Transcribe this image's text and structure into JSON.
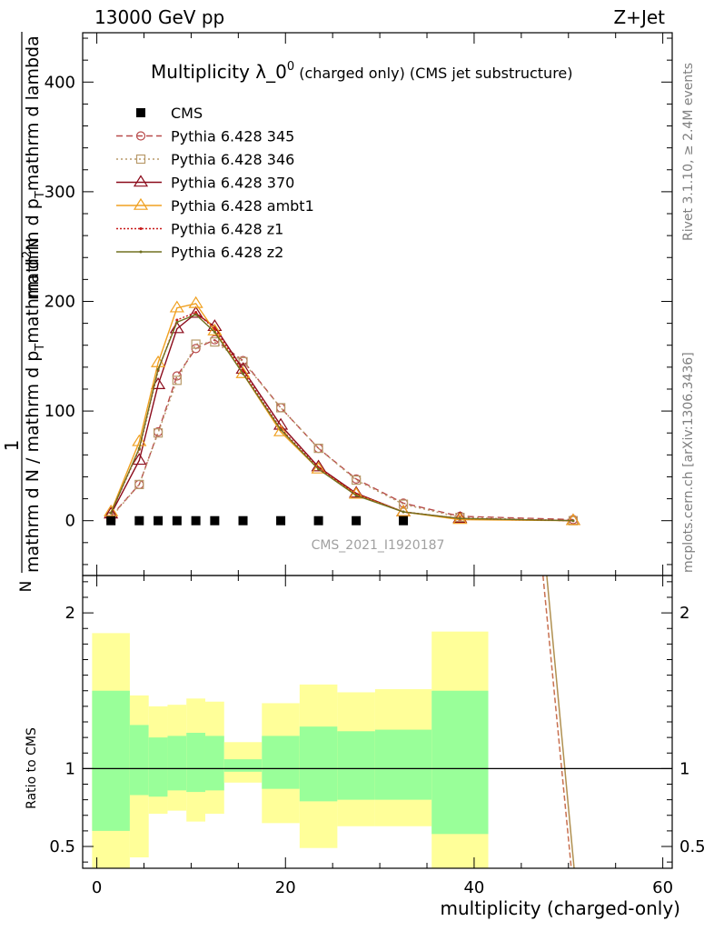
{
  "header": {
    "left": "13000 GeV pp",
    "right": "Z+Jet"
  },
  "side_labels": {
    "rivet": "Rivet 3.1.10, ≥ 2.4M events",
    "mcplots": "mcplots.cern.ch [arXiv:1306.3436]"
  },
  "watermark": "CMS_2021_I1920187",
  "chart_data": {
    "type": "line",
    "title_main": "Multiplicity λ_0",
    "title_sup": "0",
    "title_small": " (charged only) (CMS jet substructure)",
    "xlabel": "multiplicity (charged-only)",
    "ylabel_lines": [
      "1",
      "mathrm d N / mathrm d p",
      "T",
      "mathrm d",
      "2",
      "N",
      "mathrm d p",
      "T",
      "mathrm d lambda"
    ],
    "ratio_ylabel": "Ratio to CMS",
    "xlim": [
      -1.5,
      61
    ],
    "ylim": [
      -50,
      445
    ],
    "ratio_ylim": [
      0.36,
      2.24
    ],
    "xticks": [
      0,
      20,
      40,
      60
    ],
    "yticks": [
      0,
      100,
      200,
      300,
      400
    ],
    "ratio_yticks": [
      0.5,
      1,
      2
    ],
    "x": [
      1.5,
      4.5,
      6.5,
      8.5,
      10.5,
      12.5,
      15.5,
      19.5,
      23.5,
      27.5,
      32.5,
      38.5,
      50.5
    ],
    "cms_x": [
      1.5,
      4.5,
      6.5,
      8.5,
      10.5,
      12.5,
      15.5,
      19.5,
      23.5,
      27.5,
      32.5
    ],
    "cms_values": [
      0,
      0,
      0,
      0,
      0,
      0,
      0,
      0,
      0,
      0,
      0
    ],
    "series": [
      {
        "name": "Pythia 6.428 345",
        "color": "#b84a4a",
        "dash": "7,4",
        "marker": "circle",
        "values": [
          4,
          33,
          81,
          132,
          157,
          165,
          146,
          103,
          66,
          38,
          16,
          4,
          1
        ]
      },
      {
        "name": "Pythia 6.428 346",
        "color": "#b89a6a",
        "dash": "2,3",
        "marker": "square",
        "values": [
          3,
          33,
          80,
          128,
          161,
          163,
          145,
          103,
          66,
          37,
          15,
          3,
          0
        ]
      },
      {
        "name": "Pythia 6.428 370",
        "color": "#8b0a1a",
        "dash": "",
        "marker": "triangle",
        "values": [
          6,
          55,
          124,
          175,
          189,
          177,
          138,
          87,
          49,
          25,
          8,
          2,
          0
        ]
      },
      {
        "name": "Pythia 6.428 ambt1",
        "color": "#f0a020",
        "dash": "",
        "marker": "triangle",
        "values": [
          8,
          72,
          144,
          194,
          198,
          173,
          134,
          81,
          47,
          24,
          8,
          1,
          0
        ]
      },
      {
        "name": "Pythia 6.428 z1",
        "color": "#c81818",
        "dash": "2,2",
        "marker": "dot",
        "values": [
          7,
          65,
          137,
          183,
          190,
          175,
          136,
          84,
          48,
          24,
          8,
          2,
          0
        ]
      },
      {
        "name": "Pythia 6.428 z2",
        "color": "#707020",
        "dash": "",
        "marker": "dot",
        "values": [
          7,
          66,
          138,
          181,
          188,
          172,
          134,
          83,
          47,
          23,
          8,
          2,
          0
        ]
      }
    ],
    "ratio_bands": {
      "edges": [
        -0.5,
        3.5,
        5.5,
        7.5,
        9.5,
        11.5,
        13.5,
        17.5,
        21.5,
        25.5,
        29.5,
        35.5,
        41.5
      ],
      "green_lo": [
        0.6,
        0.83,
        0.82,
        0.86,
        0.85,
        0.86,
        0.98,
        0.87,
        0.79,
        0.8,
        0.8,
        0.58
      ],
      "green_hi": [
        1.5,
        1.28,
        1.2,
        1.21,
        1.23,
        1.21,
        1.06,
        1.21,
        1.27,
        1.24,
        1.25,
        1.5
      ],
      "yellow_lo": [
        0.35,
        0.43,
        0.71,
        0.73,
        0.66,
        0.71,
        0.91,
        0.65,
        0.49,
        0.63,
        0.63,
        0.35
      ],
      "yellow_hi": [
        1.87,
        1.47,
        1.4,
        1.41,
        1.45,
        1.43,
        1.17,
        1.42,
        1.54,
        1.49,
        1.51,
        1.88
      ]
    },
    "ratio_lines": [
      {
        "color": "#c87050",
        "dash": "6,3",
        "points": [
          [
            47.3,
            2.24
          ],
          [
            50.3,
            0.36
          ]
        ]
      },
      {
        "color": "#b09050",
        "dash": "",
        "points": [
          [
            47.7,
            2.24
          ],
          [
            50.6,
            0.36
          ]
        ]
      }
    ]
  }
}
